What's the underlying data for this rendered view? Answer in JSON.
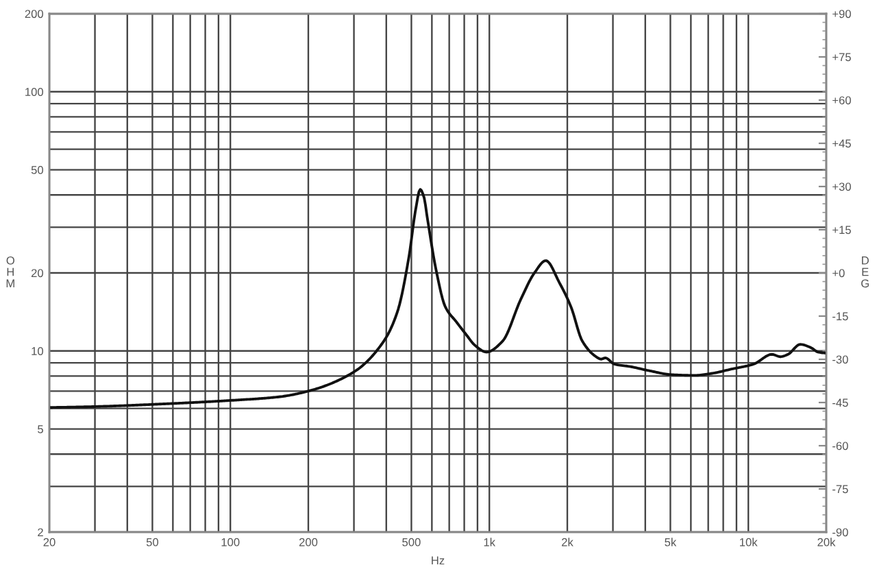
{
  "chart_data": {
    "type": "line",
    "xlabel": "Hz",
    "ylabel": "OHM",
    "y2label": "DEG",
    "x": [
      20,
      30,
      56,
      102,
      154,
      200,
      300,
      391,
      442,
      489,
      519,
      541,
      560,
      575,
      623,
      676,
      748,
      812,
      881,
      975,
      1124,
      1322,
      1493,
      1652,
      1866,
      2066,
      2287,
      2584,
      2700,
      2804,
      3038,
      3503,
      4119,
      5050,
      6190,
      7276,
      8556,
      10490,
      12330,
      13300,
      14220,
      15870,
      17430,
      18580,
      20000
    ],
    "series": [
      {
        "color": "#111111",
        "values": [
          6.05,
          6.1,
          6.25,
          6.45,
          6.65,
          7.0,
          8.3,
          10.9,
          14.2,
          23,
          35,
          42,
          39,
          33,
          20.5,
          14.8,
          12.9,
          11.6,
          10.5,
          9.9,
          10.9,
          15.8,
          20,
          22.3,
          18.3,
          14.8,
          10.9,
          9.5,
          9.3,
          9.4,
          8.9,
          8.7,
          8.4,
          8.1,
          8.05,
          8.2,
          8.5,
          8.9,
          9.7,
          9.5,
          9.7,
          10.6,
          10.3,
          9.9,
          9.8
        ]
      }
    ],
    "log": "xy",
    "grid": true,
    "line_style": "solid",
    "xlim": [
      20,
      20000
    ],
    "ylim": [
      2,
      200
    ],
    "y2lim": [
      -90,
      90
    ],
    "xticks": [
      20,
      {
        "value": 30,
        "label": null
      },
      {
        "value": 40,
        "label": null
      },
      50,
      {
        "value": 60,
        "label": null
      },
      {
        "value": 70,
        "label": null
      },
      {
        "value": 80,
        "label": null
      },
      {
        "value": 90,
        "label": null
      },
      100,
      200,
      {
        "value": 300,
        "label": null
      },
      {
        "value": 400,
        "label": null
      },
      500,
      {
        "value": 600,
        "label": null
      },
      {
        "value": 700,
        "label": null
      },
      {
        "value": 800,
        "label": null
      },
      {
        "value": 900,
        "label": null
      },
      {
        "value": 1000,
        "label": "1k"
      },
      {
        "value": 2000,
        "label": "2k"
      },
      {
        "value": 3000,
        "label": null
      },
      {
        "value": 4000,
        "label": null
      },
      {
        "value": 5000,
        "label": "5k"
      },
      {
        "value": 6000,
        "label": null
      },
      {
        "value": 7000,
        "label": null
      },
      {
        "value": 8000,
        "label": null
      },
      {
        "value": 9000,
        "label": null
      },
      {
        "value": 10000,
        "label": "10k"
      },
      {
        "value": 20000,
        "label": "20k"
      }
    ],
    "yticks": [
      2,
      {
        "value": 3,
        "label": null
      },
      {
        "value": 4,
        "label": null
      },
      5,
      {
        "value": 6,
        "label": null
      },
      {
        "value": 7,
        "label": null
      },
      {
        "value": 8,
        "label": null
      },
      {
        "value": 9,
        "label": null
      },
      10,
      20,
      {
        "value": 30,
        "label": null
      },
      {
        "value": 40,
        "label": null
      },
      50,
      {
        "value": 60,
        "label": null
      },
      {
        "value": 70,
        "label": null
      },
      {
        "value": 80,
        "label": null
      },
      {
        "value": 90,
        "label": null
      },
      100,
      200
    ],
    "y2ticks": [
      {
        "value": 90,
        "label": "+90"
      },
      {
        "value": 87,
        "label": null
      },
      {
        "value": 84,
        "label": null
      },
      {
        "value": 81,
        "label": null
      },
      {
        "value": 78,
        "label": null
      },
      {
        "value": 75,
        "label": "+75"
      },
      {
        "value": 72,
        "label": null
      },
      {
        "value": 69,
        "label": null
      },
      {
        "value": 66,
        "label": null
      },
      {
        "value": 63,
        "label": null
      },
      {
        "value": 60,
        "label": "+60"
      },
      {
        "value": 57,
        "label": null
      },
      {
        "value": 54,
        "label": null
      },
      {
        "value": 51,
        "label": null
      },
      {
        "value": 48,
        "label": null
      },
      {
        "value": 45,
        "label": "+45"
      },
      {
        "value": 42,
        "label": null
      },
      {
        "value": 39,
        "label": null
      },
      {
        "value": 36,
        "label": null
      },
      {
        "value": 33,
        "label": null
      },
      {
        "value": 30,
        "label": "+30"
      },
      {
        "value": 27,
        "label": null
      },
      {
        "value": 24,
        "label": null
      },
      {
        "value": 21,
        "label": null
      },
      {
        "value": 18,
        "label": null
      },
      {
        "value": 15,
        "label": "+15"
      },
      {
        "value": 12,
        "label": null
      },
      {
        "value": 9,
        "label": null
      },
      {
        "value": 6,
        "label": null
      },
      {
        "value": 3,
        "label": null
      },
      {
        "value": 0,
        "label": "+0"
      },
      {
        "value": -3,
        "label": null
      },
      {
        "value": -6,
        "label": null
      },
      {
        "value": -9,
        "label": null
      },
      {
        "value": -12,
        "label": null
      },
      -15,
      {
        "value": -18,
        "label": null
      },
      {
        "value": -21,
        "label": null
      },
      {
        "value": -24,
        "label": null
      },
      {
        "value": -27,
        "label": null
      },
      -30,
      {
        "value": -33,
        "label": null
      },
      {
        "value": -36,
        "label": null
      },
      {
        "value": -39,
        "label": null
      },
      {
        "value": -42,
        "label": null
      },
      -45,
      {
        "value": -48,
        "label": null
      },
      {
        "value": -51,
        "label": null
      },
      {
        "value": -54,
        "label": null
      },
      {
        "value": -57,
        "label": null
      },
      -60,
      {
        "value": -63,
        "label": null
      },
      {
        "value": -66,
        "label": null
      },
      {
        "value": -69,
        "label": null
      },
      {
        "value": -72,
        "label": null
      },
      -75,
      {
        "value": -78,
        "label": null
      },
      {
        "value": -81,
        "label": null
      },
      {
        "value": -84,
        "label": null
      },
      {
        "value": -87,
        "label": null
      },
      -90
    ]
  }
}
